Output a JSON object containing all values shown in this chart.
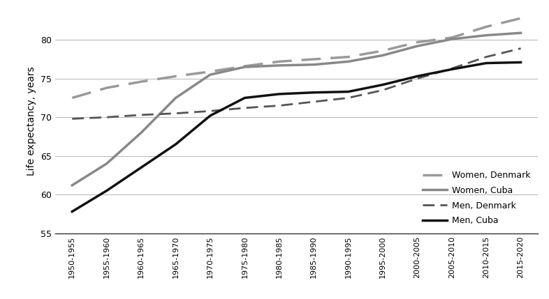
{
  "x_labels": [
    "1950-1955",
    "1955-1960",
    "1960-1965",
    "1965-1970",
    "1970-1975",
    "1975-1980",
    "1980-1985",
    "1985-1990",
    "1990-1995",
    "1995-2000",
    "2000-2005",
    "2005-2010",
    "2010-2015",
    "2015-2020"
  ],
  "women_denmark": [
    72.5,
    73.8,
    74.6,
    75.3,
    75.9,
    76.6,
    77.2,
    77.5,
    77.8,
    78.6,
    79.7,
    80.3,
    81.7,
    82.8
  ],
  "women_cuba": [
    61.2,
    64.0,
    68.0,
    72.5,
    75.5,
    76.5,
    76.7,
    76.8,
    77.2,
    78.0,
    79.2,
    80.1,
    80.6,
    80.9
  ],
  "men_denmark": [
    69.8,
    70.0,
    70.3,
    70.5,
    70.8,
    71.2,
    71.5,
    72.0,
    72.5,
    73.5,
    75.0,
    76.3,
    77.8,
    78.9
  ],
  "men_cuba": [
    57.8,
    60.5,
    63.5,
    66.5,
    70.2,
    72.5,
    73.0,
    73.2,
    73.3,
    74.2,
    75.3,
    76.2,
    77.0,
    77.1
  ],
  "ylabel": "Life expectancy, years",
  "ylim": [
    55,
    84
  ],
  "yticks": [
    55,
    60,
    65,
    70,
    75,
    80
  ],
  "color_denmark_women": "#999999",
  "color_cuba_women": "#888888",
  "color_denmark_men": "#555555",
  "color_cuba_men": "#111111",
  "legend_labels": [
    "Women, Denmark",
    "Women, Cuba",
    "Men, Denmark",
    "Men, Cuba"
  ],
  "background_color": "#ffffff",
  "grid_color": "#bbbbbb",
  "linewidth_thick": 2.5,
  "linewidth_thin": 2.0
}
